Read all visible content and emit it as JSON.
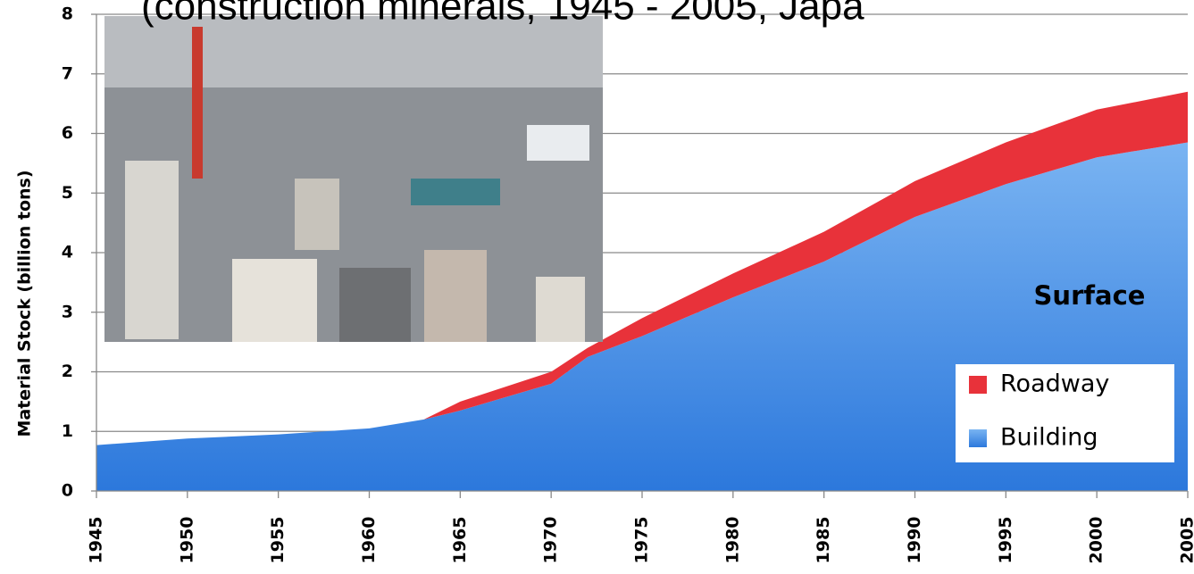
{
  "chart_data": {
    "type": "stacked_area",
    "title": "(construction minerals, 1945 - 2005, Japa",
    "ylabel": "Material Stock (billion tons)",
    "annotation": "Surface",
    "x": [
      1945,
      1950,
      1955,
      1960,
      1963,
      1965,
      1970,
      1972,
      1975,
      1980,
      1985,
      1990,
      1995,
      2000,
      2005
    ],
    "series": [
      {
        "name": "Building",
        "color": "#3a86e4",
        "values": [
          0.77,
          0.88,
          0.95,
          1.05,
          1.2,
          1.35,
          1.8,
          2.25,
          2.6,
          3.25,
          3.85,
          4.6,
          5.15,
          5.6,
          5.85
        ]
      },
      {
        "name": "Roadway",
        "color": "#e8323a",
        "values": [
          0,
          0,
          0,
          0,
          0,
          0.15,
          0.2,
          0.15,
          0.3,
          0.4,
          0.5,
          0.6,
          0.7,
          0.8,
          0.85
        ]
      }
    ],
    "xlim": [
      1945,
      2005
    ],
    "xticks": [
      1945,
      1950,
      1955,
      1960,
      1965,
      1970,
      1975,
      1980,
      1985,
      1990,
      1995,
      2000,
      2005
    ],
    "ylim": [
      0,
      8
    ],
    "yticks": [
      0,
      1,
      2,
      3,
      4,
      5,
      6,
      7,
      8
    ],
    "grid": true
  }
}
